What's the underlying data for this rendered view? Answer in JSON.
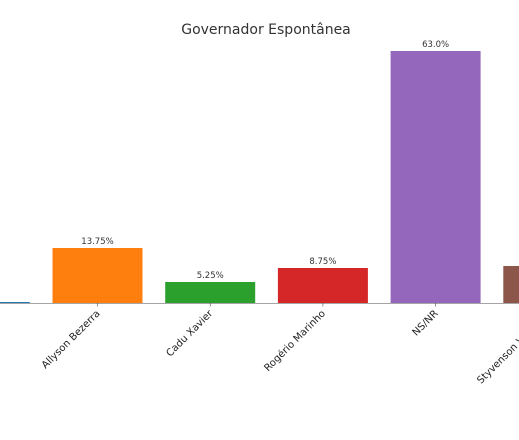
{
  "chart_data": {
    "type": "bar",
    "title": "Governador Espontânea",
    "categories": [
      "Allyson Bezerra",
      "Cadu Xavier",
      "Rogério Marinho",
      "NS/NR",
      "Styvenson Valentim"
    ],
    "values": [
      13.75,
      5.25,
      8.75,
      63.0,
      9.25
    ],
    "value_labels": [
      "13.75%",
      "5.25%",
      "8.75%",
      "63.0%",
      ""
    ],
    "colors": [
      "#ff7f0e",
      "#2ca02c",
      "#d62728",
      "#9467bd",
      "#8c564b"
    ],
    "leading_partial_bar": {
      "value": 0.25,
      "color": "#1f77b4"
    },
    "ylim": [
      0,
      66
    ],
    "grid": false,
    "legend": "none"
  }
}
